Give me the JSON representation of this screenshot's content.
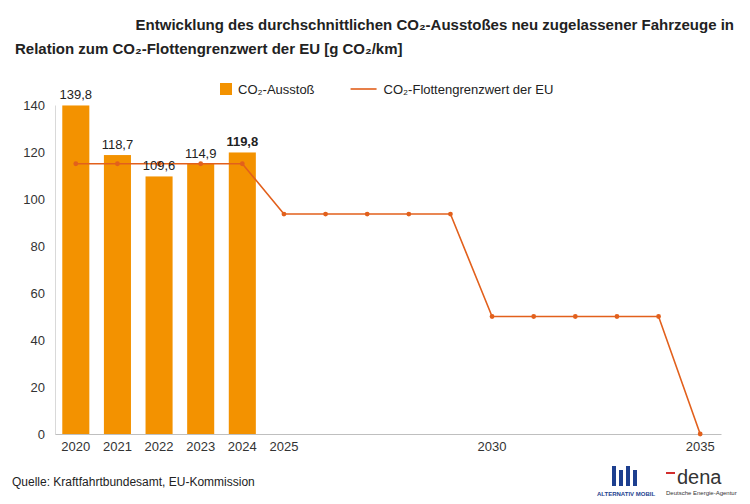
{
  "chart_data": {
    "type": "bar",
    "title": [
      "Entwicklung des durchschnittlichen CO₂-Ausstoßes neu zugelassener Fahrzeuge in",
      "Relation zum CO₂-Flottengrenzwert der EU [g CO₂/km]"
    ],
    "categories": [
      "2020",
      "2021",
      "2022",
      "2023",
      "2024",
      "2025",
      null,
      null,
      null,
      null,
      "2030",
      null,
      null,
      null,
      null,
      "2035"
    ],
    "series": [
      {
        "name": "CO₂-Ausstoß",
        "type": "bar",
        "color": "#f39200",
        "data_labels": true,
        "values": [
          139.8,
          118.7,
          109.6,
          114.9,
          119.8,
          null,
          null,
          null,
          null,
          null,
          null,
          null,
          null,
          null,
          null,
          null
        ],
        "value_labels": [
          "139,8",
          "118,7",
          "109,6",
          "114,9",
          "119,8",
          null,
          null,
          null,
          null,
          null,
          null,
          null,
          null,
          null,
          null,
          null
        ]
      },
      {
        "name": "CO₂-Flottengrenzwert der EU",
        "type": "line",
        "color": "#e2601c",
        "marker": "circle",
        "values": [
          115,
          115,
          115,
          115,
          115,
          93.6,
          93.6,
          93.6,
          93.6,
          93.6,
          50,
          50,
          50,
          50,
          50,
          0
        ]
      }
    ],
    "ylim": [
      0,
      140
    ],
    "yticks": [
      0,
      20,
      40,
      60,
      80,
      100,
      120,
      140
    ],
    "grid": false,
    "legend": "top",
    "annotations": [
      "Quelle: Kraftfahrtbundesamt, EU-Kommission",
      "ALTERNATIV MOBIL",
      "dena",
      "Deutsche Energie-Agentur"
    ]
  }
}
